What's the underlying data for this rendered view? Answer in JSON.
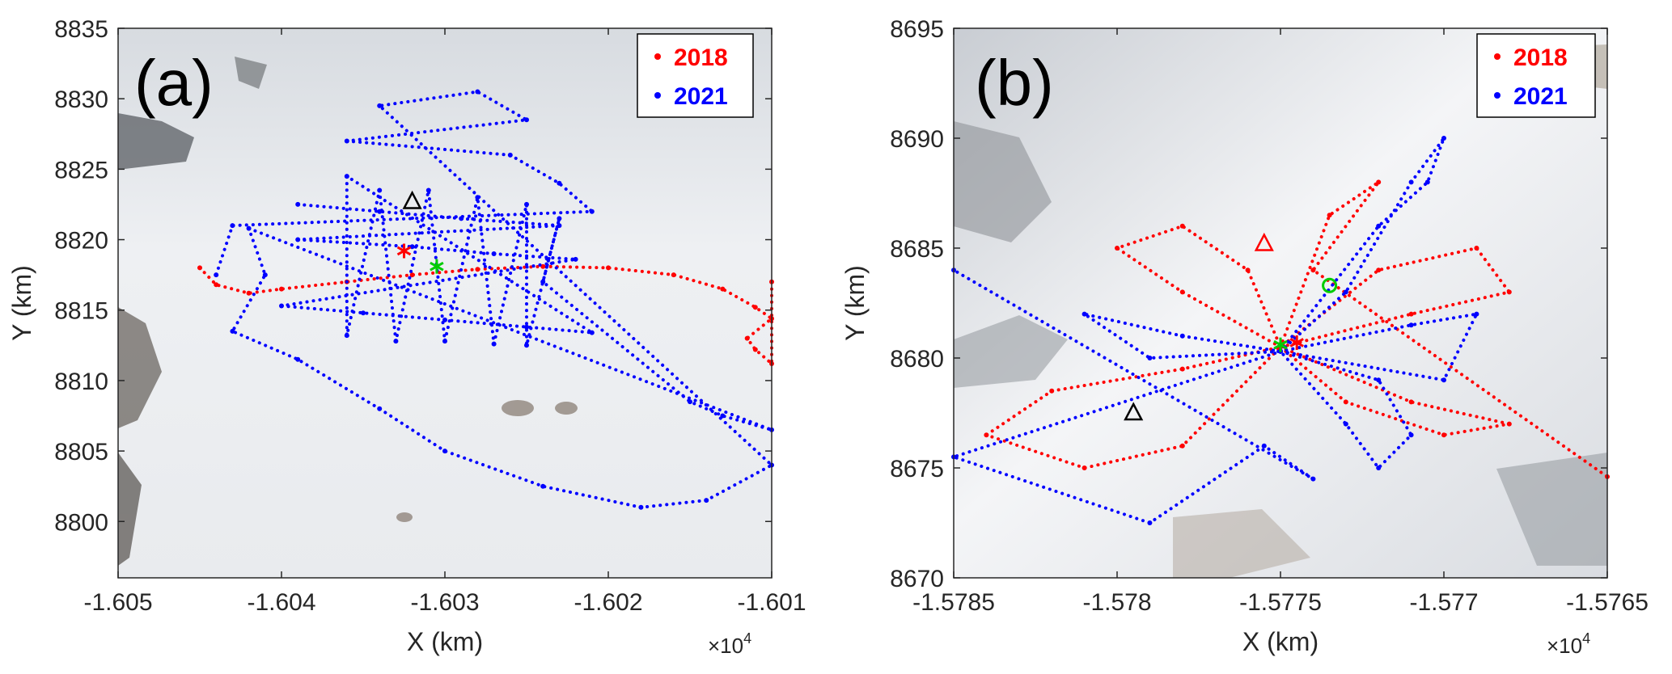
{
  "chart_data": [
    {
      "type": "scatter",
      "panel_label": "(a)",
      "xlabel": "X (km)",
      "ylabel": "Y (km)",
      "x_multiplier": "×10",
      "x_multiplier_exp": "4",
      "xlim": [
        -1.605,
        -1.601
      ],
      "ylim": [
        8796,
        8835
      ],
      "x_ticks": [
        "-1.605",
        "-1.604",
        "-1.603",
        "-1.602",
        "-1.601"
      ],
      "y_ticks": [
        "8800",
        "8805",
        "8810",
        "8815",
        "8820",
        "8825",
        "8830",
        "8835"
      ],
      "background": "satellite image (snow-covered terrain)",
      "legend_position": "top-right",
      "series": [
        {
          "name": "2018",
          "color": "#ff0000",
          "points": [
            [
              -1.6045,
              8818
            ],
            [
              -1.6044,
              8816.8
            ],
            [
              -1.6042,
              8816.2
            ],
            [
              -1.604,
              8816.5
            ],
            [
              -1.6036,
              8817
            ],
            [
              -1.6032,
              8817.5
            ],
            [
              -1.6028,
              8817.9
            ],
            [
              -1.6024,
              8818.1
            ],
            [
              -1.602,
              8818.0
            ],
            [
              -1.6016,
              8817.5
            ],
            [
              -1.6013,
              8816.5
            ],
            [
              -1.6011,
              8815.2
            ],
            [
              -1.601,
              8814.4
            ],
            [
              -1.60115,
              8813.0
            ],
            [
              -1.6011,
              8812.2
            ],
            [
              -1.601,
              8811.2
            ],
            [
              -1.601,
              8817.0
            ]
          ]
        },
        {
          "name": "2021",
          "color": "#0000ff",
          "points": [
            [
              -1.6039,
              8822.5
            ],
            [
              -1.6034,
              8822
            ],
            [
              -1.6029,
              8821.5
            ],
            [
              -1.6023,
              8821
            ],
            [
              -1.6039,
              8820
            ],
            [
              -1.6032,
              8819.5
            ],
            [
              -1.6027,
              8819
            ],
            [
              -1.6022,
              8818.6
            ],
            [
              -1.604,
              8815.3
            ],
            [
              -1.6035,
              8814.8
            ],
            [
              -1.603,
              8814.3
            ],
            [
              -1.6025,
              8813.8
            ],
            [
              -1.6021,
              8813.4
            ],
            [
              -1.6036,
              8824.5
            ],
            [
              -1.6036,
              8813.2
            ],
            [
              -1.6034,
              8823.5
            ],
            [
              -1.6033,
              8812.8
            ],
            [
              -1.6031,
              8823.5
            ],
            [
              -1.603,
              8812.8
            ],
            [
              -1.6028,
              8823
            ],
            [
              -1.6027,
              8812.6
            ],
            [
              -1.6025,
              8822.5
            ],
            [
              -1.6025,
              8812.5
            ],
            [
              -1.6023,
              8821.5
            ],
            [
              -1.6024,
              8817
            ],
            [
              -1.6015,
              8808.5
            ],
            [
              -1.6013,
              8807.5
            ],
            [
              -1.601,
              8806.5
            ],
            [
              -1.6042,
              8820.8
            ],
            [
              -1.6041,
              8817.5
            ],
            [
              -1.6043,
              8813.5
            ],
            [
              -1.6039,
              8811.5
            ],
            [
              -1.6034,
              8808
            ],
            [
              -1.603,
              8805
            ],
            [
              -1.6024,
              8802.5
            ],
            [
              -1.6018,
              8801
            ],
            [
              -1.6014,
              8801.5
            ],
            [
              -1.601,
              8804
            ],
            [
              -1.6034,
              8829.5
            ],
            [
              -1.6028,
              8830.5
            ],
            [
              -1.6025,
              8828.5
            ],
            [
              -1.6036,
              8827
            ],
            [
              -1.6026,
              8826
            ],
            [
              -1.6023,
              8824
            ],
            [
              -1.6021,
              8822
            ],
            [
              -1.6043,
              8821
            ],
            [
              -1.6044,
              8817.5
            ]
          ]
        }
      ],
      "markers": [
        {
          "name": "triangle",
          "shape": "triangle",
          "color": "#000000",
          "x": -1.6032,
          "y": 8822.7
        },
        {
          "name": "red-star",
          "shape": "asterisk",
          "color": "#ff0000",
          "x": -1.60325,
          "y": 8819.2
        },
        {
          "name": "green-star",
          "shape": "asterisk",
          "color": "#00cc00",
          "x": -1.60305,
          "y": 8818.1
        }
      ]
    },
    {
      "type": "scatter",
      "panel_label": "(b)",
      "xlabel": "X (km)",
      "ylabel": "Y (km)",
      "x_multiplier": "×10",
      "x_multiplier_exp": "4",
      "xlim": [
        -1.5785,
        -1.5765
      ],
      "ylim": [
        8670,
        8695
      ],
      "x_ticks": [
        "-1.5785",
        "-1.578",
        "-1.5775",
        "-1.577",
        "-1.5765"
      ],
      "y_ticks": [
        "8670",
        "8675",
        "8680",
        "8685",
        "8690",
        "8695"
      ],
      "background": "satellite image (snow and cloud covered terrain)",
      "legend_position": "top-right",
      "series": [
        {
          "name": "2018",
          "color": "#ff0000",
          "points": [
            [
              -1.5775,
              8680.5
            ],
            [
              -1.5778,
              8683
            ],
            [
              -1.578,
              8685
            ],
            [
              -1.5778,
              8686
            ],
            [
              -1.5776,
              8684
            ],
            [
              -1.5775,
              8680.5
            ],
            [
              -1.5778,
              8679.5
            ],
            [
              -1.5782,
              8678.5
            ],
            [
              -1.5784,
              8676.5
            ],
            [
              -1.5781,
              8675
            ],
            [
              -1.5778,
              8676
            ],
            [
              -1.5775,
              8680.5
            ],
            [
              -1.5772,
              8684
            ],
            [
              -1.5769,
              8685
            ],
            [
              -1.5768,
              8683
            ],
            [
              -1.5771,
              8682
            ],
            [
              -1.5775,
              8680.5
            ],
            [
              -1.5771,
              8678
            ],
            [
              -1.5768,
              8677
            ],
            [
              -1.577,
              8676.5
            ],
            [
              -1.5773,
              8678
            ],
            [
              -1.5775,
              8680.5
            ],
            [
              -1.57735,
              8686.5
            ],
            [
              -1.5772,
              8688
            ],
            [
              -1.5774,
              8684
            ],
            [
              -1.5765,
              8674.6
            ]
          ]
        },
        {
          "name": "2021",
          "color": "#0000ff",
          "points": [
            [
              -1.5775,
              8680.3
            ],
            [
              -1.5773,
              8683
            ],
            [
              -1.5771,
              8688
            ],
            [
              -1.577,
              8690
            ],
            [
              -1.57705,
              8688
            ],
            [
              -1.5772,
              8686
            ],
            [
              -1.5775,
              8680.3
            ],
            [
              -1.5778,
              8681
            ],
            [
              -1.5781,
              8682
            ],
            [
              -1.5779,
              8680
            ],
            [
              -1.5775,
              8680.3
            ],
            [
              -1.5773,
              8677
            ],
            [
              -1.5772,
              8675
            ],
            [
              -1.5771,
              8676.5
            ],
            [
              -1.5772,
              8679
            ],
            [
              -1.5775,
              8680.3
            ],
            [
              -1.5771,
              8681.5
            ],
            [
              -1.5769,
              8682
            ],
            [
              -1.577,
              8679
            ],
            [
              -1.5775,
              8680.3
            ],
            [
              -1.5785,
              8675.5
            ],
            [
              -1.5779,
              8672.5
            ],
            [
              -1.57755,
              8676
            ],
            [
              -1.5774,
              8674.5
            ],
            [
              -1.5785,
              8684
            ]
          ]
        }
      ],
      "markers": [
        {
          "name": "red-triangle",
          "shape": "triangle",
          "color": "#ff0000",
          "x": -1.57755,
          "y": 8685.2
        },
        {
          "name": "black-triangle",
          "shape": "triangle",
          "color": "#000000",
          "x": -1.57795,
          "y": 8677.5
        },
        {
          "name": "green-circle",
          "shape": "circle",
          "color": "#00cc00",
          "x": -1.57735,
          "y": 8683.3
        },
        {
          "name": "red-star",
          "shape": "asterisk",
          "color": "#ff0000",
          "x": -1.57745,
          "y": 8680.7
        },
        {
          "name": "green-star",
          "shape": "asterisk",
          "color": "#00cc00",
          "x": -1.5775,
          "y": 8680.6
        }
      ]
    }
  ]
}
